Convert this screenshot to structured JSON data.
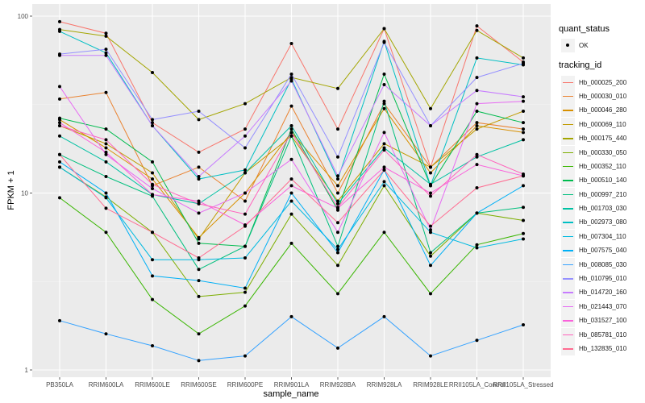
{
  "chart_data": {
    "type": "line",
    "title": "",
    "xlabel": "sample_name",
    "ylabel": "FPKM + 1",
    "yscale": "log10",
    "ylim": [
      0.93,
      115
    ],
    "yticks": [
      1,
      10,
      100
    ],
    "ytick_labels": [
      "1",
      "10",
      "100"
    ],
    "grid": true,
    "legend_position": "right",
    "categories": [
      "PB350LA",
      "RRIM600LA",
      "RRIM600LE",
      "RRIM600SE",
      "RRIM600PE",
      "RRIM901LA",
      "RRIM928BA",
      "RRIM928LA",
      "RRIM928LE",
      "RRII105LA_Control",
      "RRII105LA_Stressed"
    ],
    "legend_shape": {
      "title": "quant_status",
      "entries": [
        "OK"
      ]
    },
    "legend_color_title": "tracking_id",
    "series": [
      {
        "name": "Hb_000025_200",
        "color": "#F8766D",
        "values": [
          93,
          80,
          25,
          17,
          23,
          70,
          23,
          85,
          14,
          88,
          55
        ]
      },
      {
        "name": "Hb_000030_010",
        "color": "#EA8331",
        "values": [
          34,
          37,
          11,
          14,
          9,
          31,
          10,
          32,
          14,
          25,
          23
        ]
      },
      {
        "name": "Hb_000046_280",
        "color": "#D89000",
        "values": [
          26,
          18,
          12,
          5.6,
          10,
          22,
          11,
          30,
          13,
          24,
          22
        ]
      },
      {
        "name": "Hb_000069_110",
        "color": "#C09B00",
        "values": [
          24,
          19,
          13,
          5.5,
          13,
          21,
          9,
          19,
          14,
          23,
          29
        ]
      },
      {
        "name": "Hb_000175_440",
        "color": "#A3A500",
        "values": [
          84,
          77,
          48,
          26,
          32,
          45,
          39,
          85,
          30,
          83,
          58
        ]
      },
      {
        "name": "Hb_000330_050",
        "color": "#7CAE00",
        "values": [
          14,
          9.5,
          6,
          2.6,
          2.75,
          7.6,
          3.9,
          11,
          4.4,
          7.7,
          7
        ]
      },
      {
        "name": "Hb_000352_110",
        "color": "#39B600",
        "values": [
          9.4,
          6,
          2.5,
          1.6,
          2.3,
          5.2,
          2.7,
          6,
          2.7,
          5.1,
          5.9
        ]
      },
      {
        "name": "Hb_000510_140",
        "color": "#00BB4E",
        "values": [
          26.5,
          23,
          15,
          5.2,
          5,
          23,
          8,
          47,
          11,
          29,
          25
        ]
      },
      {
        "name": "Hb_000997_210",
        "color": "#00BF7D",
        "values": [
          16.5,
          12.4,
          9.6,
          3.7,
          5,
          21,
          5,
          33,
          4.6,
          7.7,
          8.3
        ]
      },
      {
        "name": "Hb_001703_030",
        "color": "#00C1A3",
        "values": [
          21,
          15,
          9.8,
          8.7,
          13,
          24,
          8.7,
          18,
          11.2,
          16,
          20
        ]
      },
      {
        "name": "Hb_002973_080",
        "color": "#00BFC4",
        "values": [
          82,
          62,
          24,
          12,
          13.5,
          44,
          12,
          72,
          11,
          58,
          53
        ]
      },
      {
        "name": "Hb_007304_110",
        "color": "#00BAE0",
        "values": [
          14,
          9.4,
          4.2,
          4.2,
          4.3,
          9,
          4.8,
          11.6,
          6,
          4.9,
          5.5
        ]
      },
      {
        "name": "Hb_007575_040",
        "color": "#00B0F6",
        "values": [
          15,
          10,
          3.4,
          3.2,
          2.9,
          10,
          4.6,
          13.5,
          3.9,
          7.7,
          11
        ]
      },
      {
        "name": "Hb_008085_030",
        "color": "#35A2FF",
        "values": [
          1.9,
          1.6,
          1.37,
          1.13,
          1.2,
          2,
          1.33,
          2,
          1.2,
          1.47,
          1.8
        ]
      },
      {
        "name": "Hb_010795_010",
        "color": "#9590FF",
        "values": [
          61,
          65,
          26,
          29,
          18,
          47,
          16,
          71,
          24,
          45,
          54
        ]
      },
      {
        "name": "Hb_014720_160",
        "color": "#C77CFF",
        "values": [
          60,
          60,
          24,
          12.4,
          21,
          43,
          12.5,
          41,
          24,
          38,
          35
        ]
      },
      {
        "name": "Hb_021443_070",
        "color": "#E76BF3",
        "values": [
          40,
          16.5,
          10.6,
          7.7,
          10,
          15.5,
          6,
          22,
          6.2,
          32,
          33
        ]
      },
      {
        "name": "Hb_031527_100",
        "color": "#FA62DB",
        "values": [
          25,
          17,
          9.8,
          9,
          6.6,
          11,
          8.2,
          14,
          10,
          14.5,
          12.5
        ]
      },
      {
        "name": "Hb_085781_010",
        "color": "#FF62BC",
        "values": [
          24,
          20,
          11.2,
          8.7,
          7.6,
          22,
          8.3,
          17.5,
          9.6,
          16.5,
          12.8
        ]
      },
      {
        "name": "Hb_132835_010",
        "color": "#FF6C91",
        "values": [
          16.5,
          8.2,
          6,
          4.3,
          6.5,
          12,
          6.8,
          13.5,
          6.5,
          10.7,
          12.5
        ]
      }
    ]
  }
}
